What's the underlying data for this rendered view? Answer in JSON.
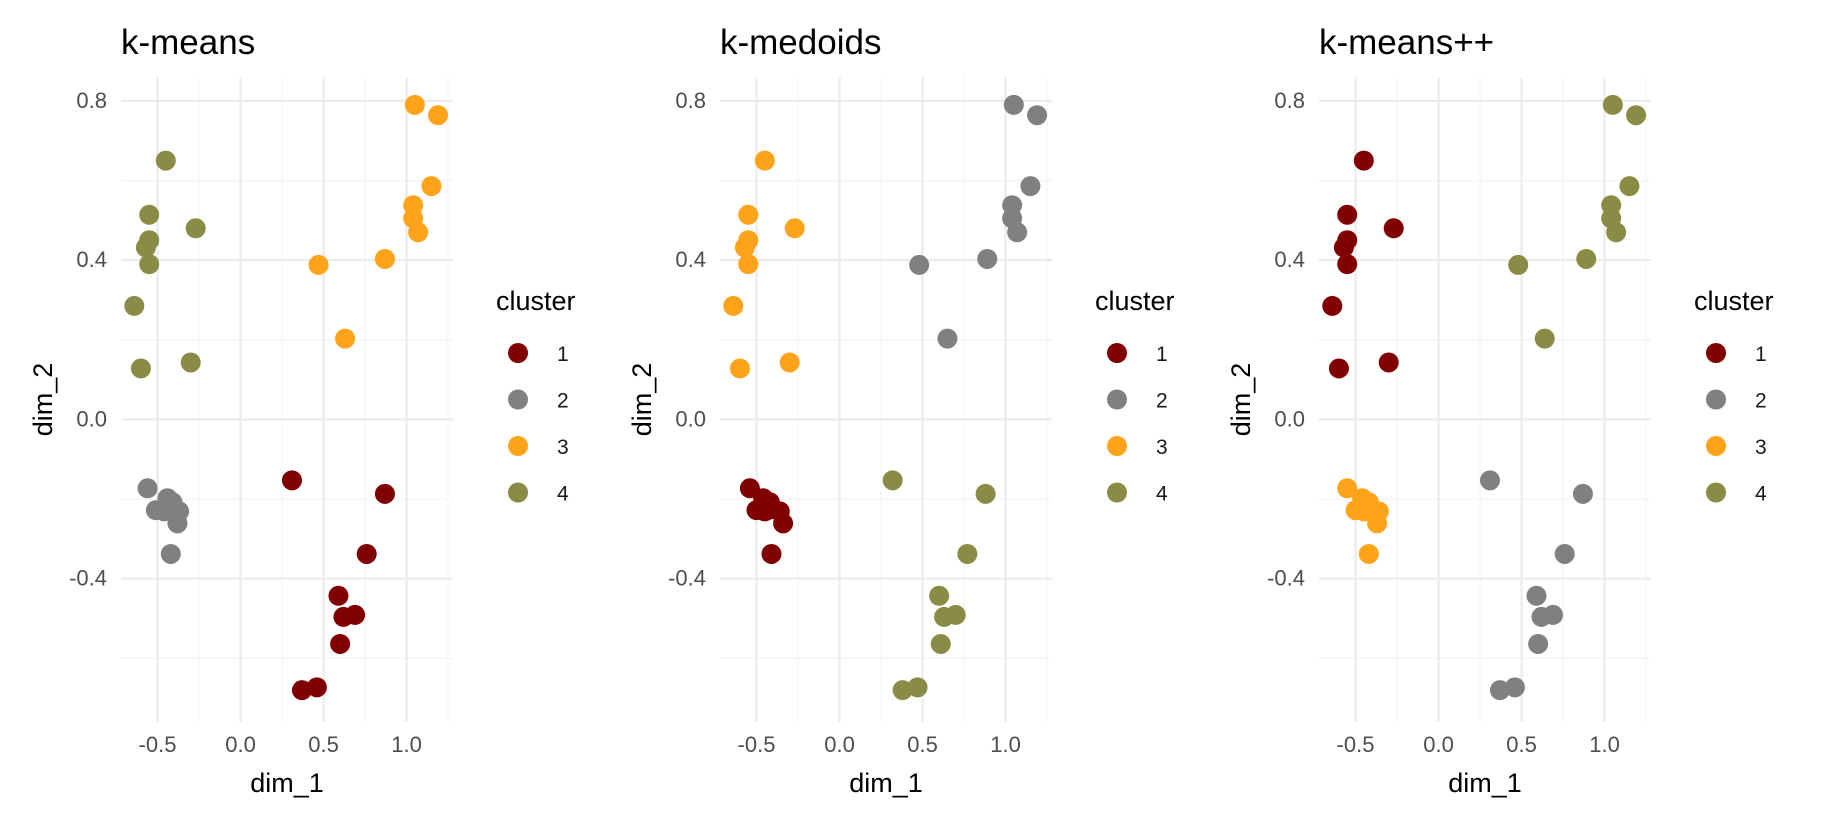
{
  "chart_data": [
    {
      "type": "scatter",
      "title": "k-means",
      "xlabel": "dim_1",
      "ylabel": "dim_2",
      "xlim": [
        -0.72,
        1.28
      ],
      "ylim": [
        -0.76,
        0.86
      ],
      "xticks": [
        -0.5,
        0.0,
        0.5,
        1.0
      ],
      "xtick_labels": [
        "-0.5",
        "0.0",
        "0.5",
        "1.0"
      ],
      "yticks": [
        -0.4,
        0.0,
        0.4,
        0.8
      ],
      "ytick_labels": [
        "-0.4",
        "0.0",
        "0.4",
        "0.8"
      ],
      "grid": true,
      "legend_title": "cluster",
      "legend": [
        "1",
        "2",
        "3",
        "4"
      ],
      "legend_position": "right",
      "series": [
        {
          "name": "1",
          "color": "#800000",
          "x": [
            0.31,
            0.87,
            0.76,
            0.59,
            0.62,
            0.69,
            0.6,
            0.46,
            0.37
          ],
          "y": [
            -0.153,
            -0.187,
            -0.338,
            -0.443,
            -0.496,
            -0.491,
            -0.564,
            -0.673,
            -0.68
          ]
        },
        {
          "name": "2",
          "color": "#808080",
          "x": [
            -0.56,
            -0.44,
            -0.41,
            -0.51,
            -0.46,
            -0.43,
            -0.37,
            -0.38,
            -0.42
          ],
          "y": [
            -0.173,
            -0.198,
            -0.208,
            -0.228,
            -0.231,
            -0.226,
            -0.231,
            -0.261,
            -0.338
          ]
        },
        {
          "name": "3",
          "color": "#ffa31a",
          "x": [
            1.05,
            1.19,
            1.15,
            1.04,
            1.04,
            1.07,
            0.47,
            0.87,
            0.63
          ],
          "y": [
            0.79,
            0.764,
            0.586,
            0.538,
            0.505,
            0.47,
            0.388,
            0.403,
            0.203
          ]
        },
        {
          "name": "4",
          "color": "#8a8c46",
          "x": [
            -0.45,
            -0.55,
            -0.55,
            -0.57,
            -0.55,
            -0.27,
            -0.64,
            -0.6,
            -0.3
          ],
          "y": [
            0.65,
            0.514,
            0.45,
            0.432,
            0.39,
            0.48,
            0.285,
            0.128,
            0.143
          ]
        }
      ]
    },
    {
      "type": "scatter",
      "title": "k-medoids",
      "xlabel": "dim_1",
      "ylabel": "dim_2",
      "xlim": [
        -0.72,
        1.28
      ],
      "ylim": [
        -0.76,
        0.86
      ],
      "xticks": [
        -0.5,
        0.0,
        0.5,
        1.0
      ],
      "xtick_labels": [
        "-0.5",
        "0.0",
        "0.5",
        "1.0"
      ],
      "yticks": [
        -0.4,
        0.0,
        0.4,
        0.8
      ],
      "ytick_labels": [
        "-0.4",
        "0.0",
        "0.4",
        "0.8"
      ],
      "grid": true,
      "legend_title": "cluster",
      "legend": [
        "1",
        "2",
        "3",
        "4"
      ],
      "legend_position": "right",
      "series": [
        {
          "name": "1",
          "color": "#800000",
          "x": [
            -0.54,
            -0.46,
            -0.42,
            -0.5,
            -0.45,
            -0.42,
            -0.36,
            -0.34,
            -0.41
          ],
          "y": [
            -0.173,
            -0.198,
            -0.208,
            -0.228,
            -0.231,
            -0.226,
            -0.231,
            -0.261,
            -0.338
          ]
        },
        {
          "name": "2",
          "color": "#808080",
          "x": [
            1.05,
            1.19,
            1.15,
            1.04,
            1.04,
            1.07,
            0.48,
            0.89,
            0.65
          ],
          "y": [
            0.79,
            0.764,
            0.586,
            0.538,
            0.505,
            0.47,
            0.388,
            0.403,
            0.203
          ]
        },
        {
          "name": "3",
          "color": "#ffa31a",
          "x": [
            -0.45,
            -0.55,
            -0.55,
            -0.57,
            -0.55,
            -0.27,
            -0.64,
            -0.6,
            -0.3
          ],
          "y": [
            0.65,
            0.514,
            0.45,
            0.432,
            0.39,
            0.48,
            0.285,
            0.128,
            0.143
          ]
        },
        {
          "name": "4",
          "color": "#8a8c46",
          "x": [
            0.32,
            0.88,
            0.77,
            0.6,
            0.63,
            0.7,
            0.61,
            0.47,
            0.38
          ],
          "y": [
            -0.153,
            -0.187,
            -0.338,
            -0.443,
            -0.496,
            -0.491,
            -0.564,
            -0.673,
            -0.68
          ]
        }
      ]
    },
    {
      "type": "scatter",
      "title": "k-means++",
      "xlabel": "dim_1",
      "ylabel": "dim_2",
      "xlim": [
        -0.72,
        1.28
      ],
      "ylim": [
        -0.76,
        0.86
      ],
      "xticks": [
        -0.5,
        0.0,
        0.5,
        1.0
      ],
      "xtick_labels": [
        "-0.5",
        "0.0",
        "0.5",
        "1.0"
      ],
      "yticks": [
        -0.4,
        0.0,
        0.4,
        0.8
      ],
      "ytick_labels": [
        "-0.4",
        "0.0",
        "0.4",
        "0.8"
      ],
      "grid": true,
      "legend_title": "cluster",
      "legend": [
        "1",
        "2",
        "3",
        "4"
      ],
      "legend_position": "right",
      "series": [
        {
          "name": "1",
          "color": "#800000",
          "x": [
            -0.45,
            -0.55,
            -0.55,
            -0.57,
            -0.55,
            -0.27,
            -0.64,
            -0.6,
            -0.3
          ],
          "y": [
            0.65,
            0.514,
            0.45,
            0.432,
            0.39,
            0.48,
            0.285,
            0.128,
            0.143
          ]
        },
        {
          "name": "2",
          "color": "#808080",
          "x": [
            0.31,
            0.87,
            0.76,
            0.59,
            0.62,
            0.69,
            0.6,
            0.46,
            0.37
          ],
          "y": [
            -0.153,
            -0.187,
            -0.338,
            -0.443,
            -0.496,
            -0.491,
            -0.564,
            -0.673,
            -0.68
          ]
        },
        {
          "name": "3",
          "color": "#ffa31a",
          "x": [
            -0.55,
            -0.46,
            -0.42,
            -0.5,
            -0.45,
            -0.42,
            -0.36,
            -0.37,
            -0.42
          ],
          "y": [
            -0.173,
            -0.198,
            -0.208,
            -0.228,
            -0.231,
            -0.226,
            -0.231,
            -0.261,
            -0.338
          ]
        },
        {
          "name": "4",
          "color": "#8a8c46",
          "x": [
            1.05,
            1.19,
            1.15,
            1.04,
            1.04,
            1.07,
            0.48,
            0.89,
            0.64
          ],
          "y": [
            0.79,
            0.764,
            0.586,
            0.538,
            0.505,
            0.47,
            0.388,
            0.403,
            0.203
          ]
        }
      ]
    }
  ]
}
